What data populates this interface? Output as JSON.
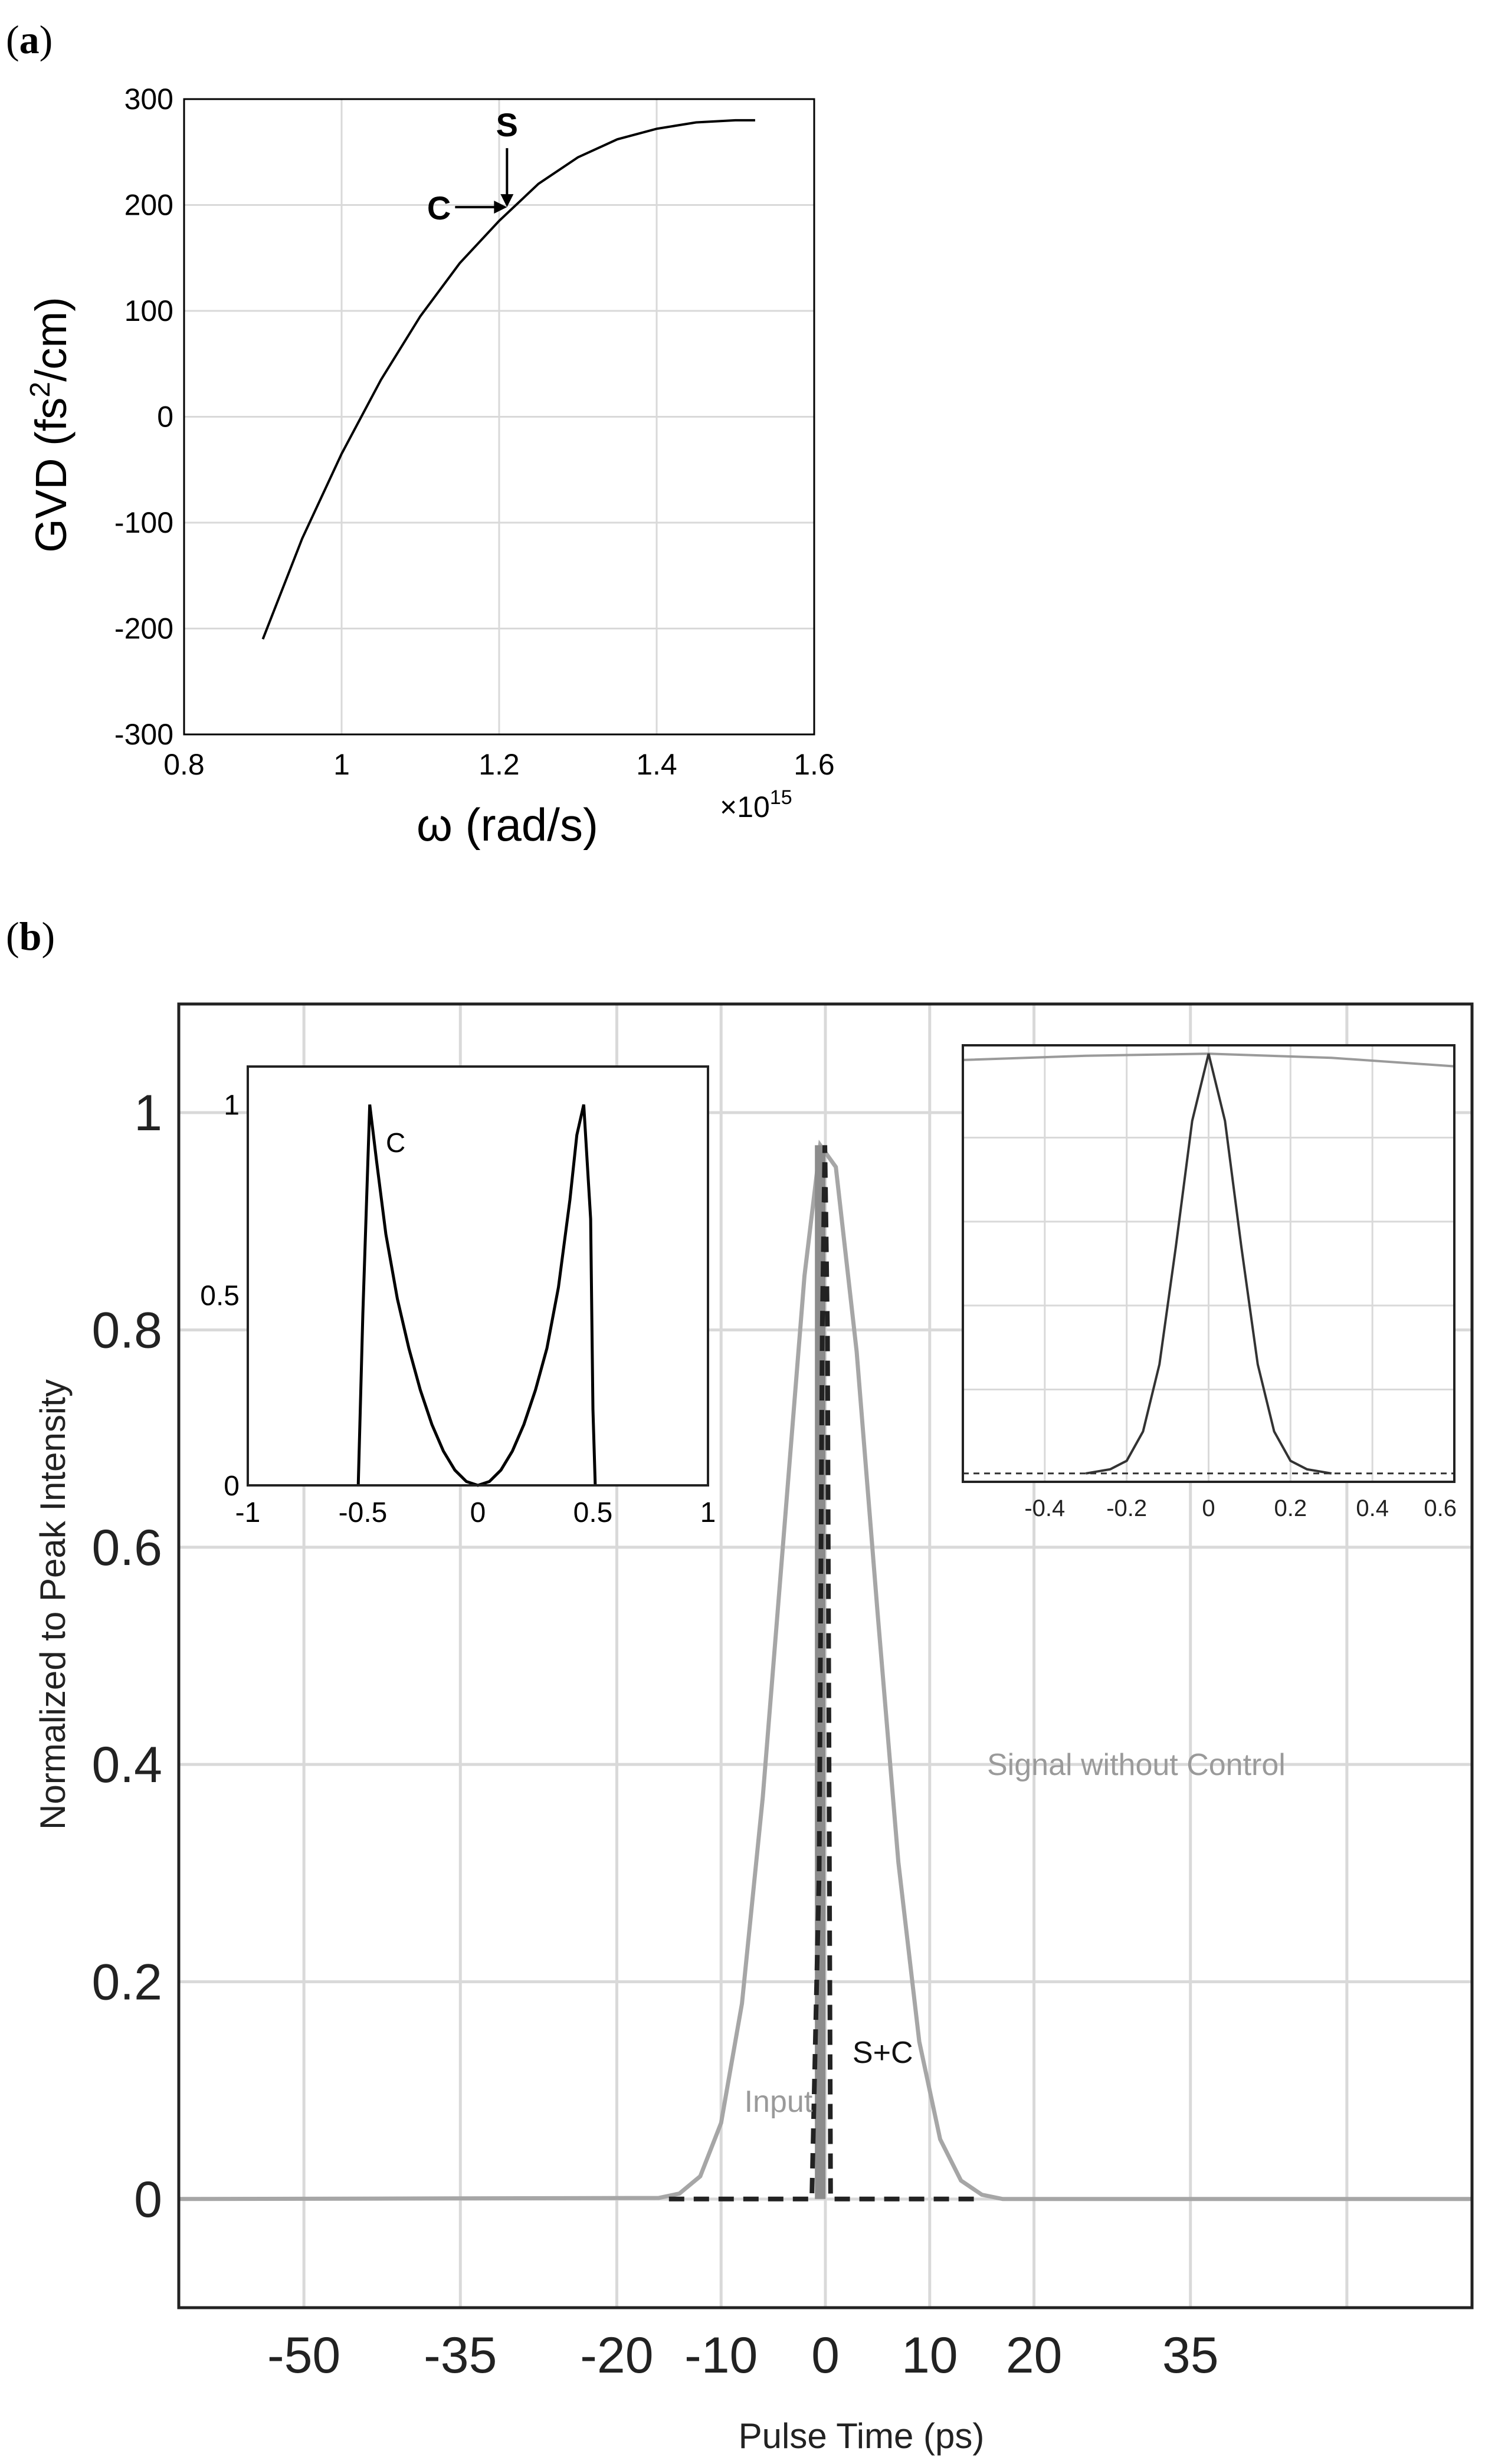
{
  "figure": {
    "panel_a": {
      "open": "(",
      "letter": "a",
      "close": ")"
    },
    "panel_b": {
      "open": "(",
      "letter": "b",
      "close": ")"
    }
  },
  "colors": {
    "axis": "#000000",
    "grid": "#d9d9d9",
    "curve_dark": "#000000",
    "curve_light": "#a6a6a6",
    "label_light": "#9a9a9a"
  },
  "chart_data": [
    {
      "id": "a",
      "type": "line",
      "title": "",
      "xlabel": "ω (rad/s)",
      "ylabel_parts": [
        "GVD (fs",
        "2",
        "/cm)"
      ],
      "x_multiplier": "×10",
      "x_multiplier_exp": "15",
      "xlim": [
        0.8,
        1.6
      ],
      "ylim": [
        -300,
        300
      ],
      "xticks": [
        0.8,
        1,
        1.2,
        1.4,
        1.6
      ],
      "xtick_labels": [
        "0.8",
        "1",
        "1.2",
        "1.4",
        "1.6"
      ],
      "yticks": [
        -300,
        -200,
        -100,
        0,
        100,
        200,
        300
      ],
      "ytick_labels": [
        "-300",
        "-200",
        "-100",
        "0",
        "100",
        "200",
        "300"
      ],
      "grid": true,
      "series": [
        {
          "x": [
            0.9,
            0.95,
            1.0,
            1.05,
            1.1,
            1.15,
            1.2,
            1.25,
            1.3,
            1.35,
            1.4,
            1.45,
            1.5,
            1.525
          ],
          "y": [
            -210,
            -115,
            -35,
            35,
            95,
            145,
            185,
            220,
            245,
            262,
            272,
            278,
            280,
            280
          ]
        }
      ],
      "annotations": [
        {
          "text": "S",
          "x": 1.21,
          "y": 198,
          "arrow": "down"
        },
        {
          "text": "C",
          "x": 1.21,
          "y": 198,
          "arrow": "right"
        }
      ]
    },
    {
      "id": "b",
      "type": "line",
      "title": "",
      "xlabel": "Pulse Time (ps)",
      "ylabel": "Normalized to Peak Intensity",
      "xlim": [
        -62,
        62
      ],
      "ylim": [
        -0.1,
        1.1
      ],
      "xticks": [
        -50,
        -35,
        -20,
        -10,
        0,
        10,
        20,
        35
      ],
      "xtick_labels": [
        "-50",
        "-35",
        "-20",
        "-10",
        "0",
        "10",
        "20",
        "35"
      ],
      "xgrid": [
        -50,
        -35,
        -20,
        -10,
        0,
        10,
        20,
        35,
        50
      ],
      "yticks": [
        0,
        0.2,
        0.4,
        0.6,
        0.8,
        1
      ],
      "ytick_labels": [
        "0",
        "0.2",
        "0.4",
        "0.6",
        "0.8",
        "1"
      ],
      "grid": true,
      "series": [
        {
          "name": "Signal without Control",
          "style": "light",
          "x": [
            -62,
            -16,
            -14,
            -12,
            -10,
            -8,
            -6,
            -4,
            -2,
            -0.5,
            1,
            3,
            5,
            7,
            9,
            11,
            13,
            15,
            17,
            62
          ],
          "y": [
            0,
            0.001,
            0.005,
            0.021,
            0.07,
            0.18,
            0.37,
            0.61,
            0.85,
            0.97,
            0.95,
            0.78,
            0.54,
            0.31,
            0.145,
            0.055,
            0.017,
            0.004,
            0.0,
            0
          ]
        },
        {
          "name": "S+C",
          "style": "dashed-dark",
          "x": [
            -15,
            -1.3,
            -0.6,
            -0.3,
            -0.05,
            0.2,
            0.5,
            15
          ],
          "y": [
            0,
            0,
            0.3,
            0.8,
            0.97,
            0.8,
            0,
            0
          ]
        },
        {
          "name": "Input",
          "style": "light-thick",
          "x": [
            -0.5,
            -0.5
          ],
          "y": [
            0,
            0.97
          ]
        }
      ],
      "labels": [
        {
          "text": "Signal without Control",
          "x": 15.5,
          "y": 0.4
        },
        {
          "text": "Input",
          "x": -4.5,
          "y": 0.09
        },
        {
          "text": "S+C",
          "x": 5.5,
          "y": 0.135
        }
      ]
    },
    {
      "id": "b-inset-left",
      "type": "line",
      "title": "",
      "xlim": [
        -1,
        1
      ],
      "ylim": [
        0,
        1.1
      ],
      "xticks": [
        -1,
        -0.5,
        0,
        0.5,
        1
      ],
      "xtick_labels": [
        "-1",
        "-0.5",
        "0",
        "0.5",
        "1"
      ],
      "yticks": [
        0,
        0.5,
        1
      ],
      "ytick_labels": [
        "0",
        "0.5",
        "1"
      ],
      "grid": false,
      "series": [
        {
          "name": "C",
          "x": [
            -0.52,
            -0.5,
            -0.47,
            -0.44,
            -0.4,
            -0.35,
            -0.3,
            -0.25,
            -0.2,
            -0.15,
            -0.1,
            -0.05,
            0,
            0.05,
            0.1,
            0.15,
            0.2,
            0.25,
            0.3,
            0.35,
            0.4,
            0.43,
            0.46,
            0.49,
            0.5,
            0.51
          ],
          "y": [
            0,
            0.45,
            1.0,
            0.85,
            0.66,
            0.49,
            0.36,
            0.25,
            0.16,
            0.09,
            0.04,
            0.01,
            0,
            0.01,
            0.04,
            0.09,
            0.16,
            0.25,
            0.36,
            0.52,
            0.75,
            0.92,
            1.0,
            0.7,
            0.2,
            0
          ]
        }
      ],
      "labels": [
        {
          "text": "C",
          "x": -0.4,
          "y": 0.9
        }
      ]
    },
    {
      "id": "b-inset-right",
      "type": "line",
      "title": "",
      "xlim": [
        -0.6,
        0.6
      ],
      "ylim": [
        -0.02,
        1.02
      ],
      "xticks": [
        -0.4,
        -0.2,
        0,
        0.2,
        0.4,
        0.6
      ],
      "xtick_labels": [
        "-0.4",
        "-0.2",
        "0",
        "0.2",
        "0.4",
        "0.6"
      ],
      "xgrid": [
        -0.4,
        -0.2,
        0,
        0.2,
        0.4
      ],
      "ygrid": [
        0.2,
        0.4,
        0.6,
        0.8
      ],
      "grid": true,
      "series": [
        {
          "style": "light",
          "x": [
            -0.6,
            -0.3,
            0,
            0.3,
            0.6
          ],
          "y": [
            0.985,
            0.995,
            1.0,
            0.99,
            0.97
          ]
        },
        {
          "style": "dark",
          "x": [
            -0.3,
            -0.24,
            -0.2,
            -0.16,
            -0.12,
            -0.08,
            -0.04,
            0,
            0.04,
            0.08,
            0.12,
            0.16,
            0.2,
            0.24,
            0.3
          ],
          "y": [
            0.0,
            0.01,
            0.03,
            0.1,
            0.26,
            0.54,
            0.84,
            1.0,
            0.84,
            0.54,
            0.26,
            0.1,
            0.03,
            0.01,
            0.0
          ]
        },
        {
          "style": "dashed-dark",
          "x": [
            -0.6,
            -0.3,
            0.3,
            0.6
          ],
          "y": [
            0.0,
            0.0,
            0.0,
            0.0
          ]
        }
      ]
    }
  ]
}
